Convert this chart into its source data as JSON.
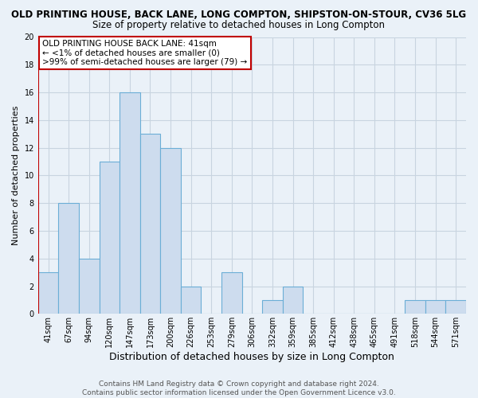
{
  "title": "OLD PRINTING HOUSE, BACK LANE, LONG COMPTON, SHIPSTON-ON-STOUR, CV36 5LG",
  "subtitle": "Size of property relative to detached houses in Long Compton",
  "xlabel": "Distribution of detached houses by size in Long Compton",
  "ylabel": "Number of detached properties",
  "bin_labels": [
    "41sqm",
    "67sqm",
    "94sqm",
    "120sqm",
    "147sqm",
    "173sqm",
    "200sqm",
    "226sqm",
    "253sqm",
    "279sqm",
    "306sqm",
    "332sqm",
    "359sqm",
    "385sqm",
    "412sqm",
    "438sqm",
    "465sqm",
    "491sqm",
    "518sqm",
    "544sqm",
    "571sqm"
  ],
  "bar_values": [
    3,
    8,
    4,
    11,
    16,
    13,
    12,
    2,
    0,
    3,
    0,
    1,
    2,
    0,
    0,
    0,
    0,
    0,
    1,
    1,
    1
  ],
  "bar_color": "#cddcee",
  "bar_edge_color": "#6baed6",
  "highlight_line_color": "#c00000",
  "ylim": [
    0,
    20
  ],
  "yticks": [
    0,
    2,
    4,
    6,
    8,
    10,
    12,
    14,
    16,
    18,
    20
  ],
  "annotation_title": "OLD PRINTING HOUSE BACK LANE: 41sqm",
  "annotation_line1": "← <1% of detached houses are smaller (0)",
  "annotation_line2": ">99% of semi-detached houses are larger (79) →",
  "annotation_box_color": "#ffffff",
  "annotation_border_color": "#c00000",
  "footer_line1": "Contains HM Land Registry data © Crown copyright and database right 2024.",
  "footer_line2": "Contains public sector information licensed under the Open Government Licence v3.0.",
  "background_color": "#eaf1f8",
  "plot_bg_color": "#eaf1f8",
  "grid_color": "#c8d4e0",
  "title_fontsize": 8.5,
  "subtitle_fontsize": 8.5,
  "xlabel_fontsize": 9,
  "ylabel_fontsize": 8,
  "tick_fontsize": 7,
  "annotation_fontsize": 7.5,
  "footer_fontsize": 6.5
}
